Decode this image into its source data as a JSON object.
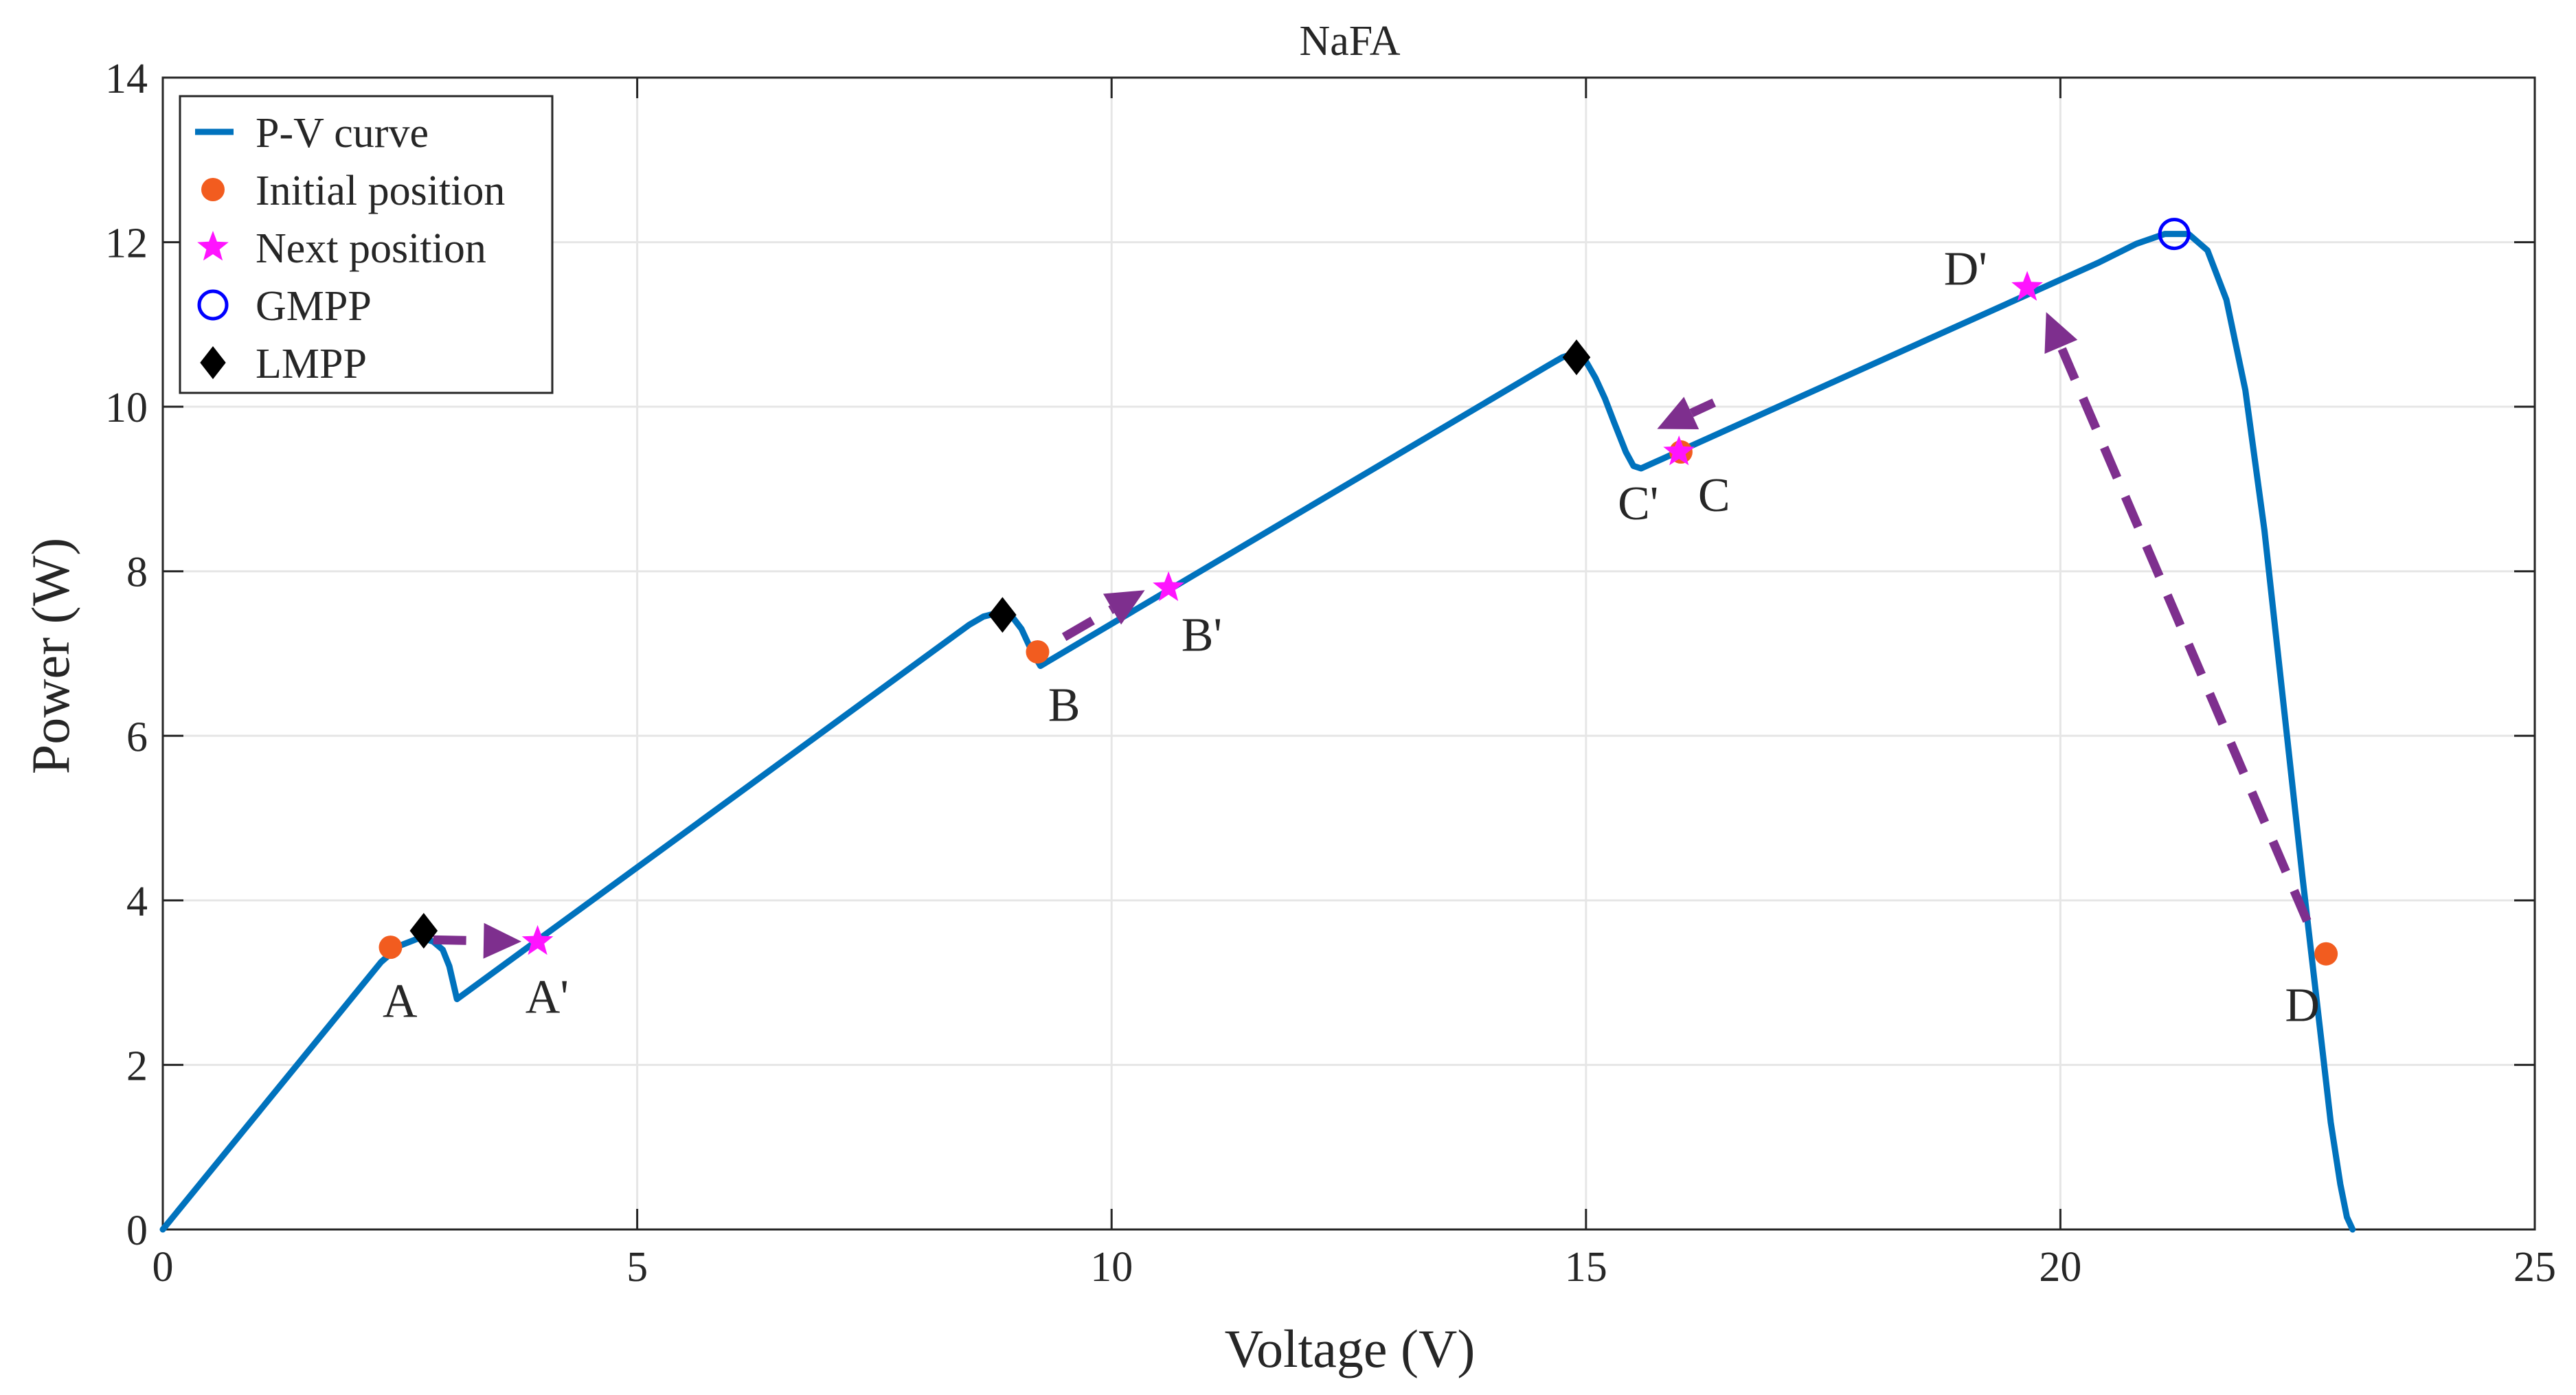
{
  "chart_data": {
    "type": "line",
    "title": "NaFA",
    "xlabel": "Voltage (V)",
    "ylabel": "Power (W)",
    "xlim": [
      0,
      25
    ],
    "ylim": [
      0,
      14
    ],
    "xticks": [
      0,
      5,
      10,
      15,
      20,
      25
    ],
    "yticks": [
      0,
      2,
      4,
      6,
      8,
      10,
      12,
      14
    ],
    "grid": true,
    "legend_position": "top-left",
    "colors": {
      "curve": "#0072BD",
      "initial": "#F25C1F",
      "next": "#FF14FF",
      "gmpp": "#0000FF",
      "lmpp": "#000000",
      "arrow": "#7E2F8E",
      "grid": "#E6E6E6",
      "axis": "#262626"
    },
    "legend": [
      {
        "label": "P-V curve",
        "marker": "line"
      },
      {
        "label": "Initial position",
        "marker": "dot"
      },
      {
        "label": "Next position",
        "marker": "star"
      },
      {
        "label": "GMPP",
        "marker": "circle"
      },
      {
        "label": "LMPP",
        "marker": "diamond"
      }
    ],
    "curve": {
      "name": "P-V curve",
      "x": [
        0,
        2.3,
        2.5,
        2.72,
        2.85,
        2.95,
        3.02,
        3.1,
        8.5,
        8.65,
        8.82,
        8.95,
        9.05,
        9.15,
        9.25,
        14.6,
        14.75,
        14.88,
        15.0,
        15.1,
        15.2,
        15.3,
        15.42,
        15.5,
        15.58,
        20.4,
        20.8,
        21.1,
        21.35,
        21.55,
        21.75,
        21.95,
        22.15,
        22.35,
        22.55,
        22.72,
        22.85,
        22.95,
        23.02,
        23.08
      ],
      "y": [
        0,
        3.25,
        3.45,
        3.55,
        3.5,
        3.4,
        3.2,
        2.8,
        7.35,
        7.45,
        7.5,
        7.45,
        7.3,
        7.05,
        6.85,
        10.5,
        10.6,
        10.65,
        10.55,
        10.35,
        10.1,
        9.8,
        9.45,
        9.28,
        9.25,
        11.75,
        11.98,
        12.1,
        12.1,
        11.9,
        11.3,
        10.2,
        8.5,
        6.4,
        4.3,
        2.6,
        1.3,
        0.55,
        0.15,
        0
      ]
    },
    "initial_positions": [
      {
        "label": "A",
        "x": 2.4,
        "y": 3.43
      },
      {
        "label": "B",
        "x": 9.22,
        "y": 7.02
      },
      {
        "label": "C",
        "x": 16.0,
        "y": 9.45
      },
      {
        "label": "D",
        "x": 22.8,
        "y": 3.35
      }
    ],
    "next_positions": [
      {
        "label": "A'",
        "x": 3.95,
        "y": 3.5
      },
      {
        "label": "B'",
        "x": 10.6,
        "y": 7.8
      },
      {
        "label": "C'",
        "x": 15.98,
        "y": 9.45
      },
      {
        "label": "D'",
        "x": 19.65,
        "y": 11.45
      }
    ],
    "gmpp": [
      {
        "x": 21.2,
        "y": 12.1
      }
    ],
    "lmpp": [
      {
        "x": 2.75,
        "y": 3.63
      },
      {
        "x": 8.85,
        "y": 7.47
      },
      {
        "x": 14.9,
        "y": 10.6
      }
    ],
    "arrows": [
      {
        "from": [
          2.85,
          3.52
        ],
        "to": [
          3.78,
          3.5
        ]
      },
      {
        "from": [
          9.5,
          7.2
        ],
        "to": [
          10.35,
          7.77
        ]
      },
      {
        "from": [
          16.35,
          10.05
        ],
        "to": [
          15.75,
          9.73
        ]
      },
      {
        "from": [
          22.6,
          3.75
        ],
        "to": [
          19.85,
          11.15
        ]
      }
    ],
    "point_labels": [
      {
        "text": "A",
        "x": 2.5,
        "y": 2.8
      },
      {
        "text": "A'",
        "x": 4.05,
        "y": 2.85
      },
      {
        "text": "B",
        "x": 9.5,
        "y": 6.4
      },
      {
        "text": "B'",
        "x": 10.95,
        "y": 7.25
      },
      {
        "text": "C",
        "x": 16.35,
        "y": 8.95
      },
      {
        "text": "C'",
        "x": 15.55,
        "y": 8.85
      },
      {
        "text": "D",
        "x": 22.55,
        "y": 2.75
      },
      {
        "text": "D'",
        "x": 19.0,
        "y": 11.7
      }
    ]
  }
}
